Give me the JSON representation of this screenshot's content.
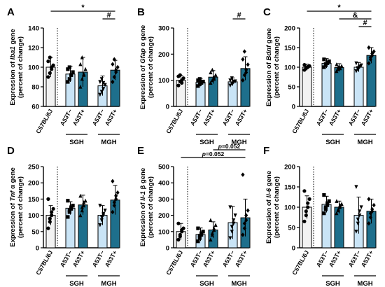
{
  "colors": {
    "ctrl": "#f2f2f2",
    "a53t_neg": "#c9e4f6",
    "a53t_pos": "#1e6f8c",
    "ink": "#000000"
  },
  "shared": {
    "categories": [
      "C57BL/6J",
      "A53T−",
      "A53T+",
      "A53T−",
      "A53T+"
    ],
    "groups": [
      "SGH",
      "MGH"
    ]
  },
  "chart_data": [
    {
      "panel": "A",
      "type": "bar",
      "ylabel_parts": [
        "Expression of ",
        "Iba1",
        " gene"
      ],
      "ylabel2": "(percent of change)",
      "ylim": [
        60,
        140
      ],
      "yticks": [
        60,
        80,
        100,
        120,
        140
      ],
      "values": [
        100,
        93,
        95,
        81,
        97
      ],
      "errors": [
        10,
        8,
        15,
        10,
        10
      ],
      "points": [
        [
          90,
          94,
          98,
          102,
          106,
          110,
          100
        ],
        [
          85,
          88,
          92,
          95,
          98,
          100,
          92
        ],
        [
          80,
          88,
          93,
          98,
          103,
          110,
          92
        ],
        [
          72,
          75,
          78,
          82,
          85,
          88,
          84
        ],
        [
          85,
          90,
          95,
          100,
          103,
          108,
          97
        ]
      ],
      "sig": [
        {
          "label": "*",
          "from": 0,
          "to": 4,
          "level": 0
        },
        {
          "label": "#",
          "from": 3,
          "to": 4,
          "level": 1
        }
      ]
    },
    {
      "panel": "B",
      "type": "bar",
      "ylabel_parts": [
        "Expression of ",
        "Gfap",
        " α gene"
      ],
      "ylabel2": "(percent of change)",
      "ylim": [
        0,
        300
      ],
      "yticks": [
        0,
        100,
        200,
        300
      ],
      "values": [
        100,
        92,
        112,
        94,
        145
      ],
      "errors": [
        18,
        15,
        25,
        15,
        45
      ],
      "points": [
        [
          80,
          95,
          100,
          108,
          115,
          120,
          90
        ],
        [
          78,
          85,
          90,
          95,
          100,
          105,
          92
        ],
        [
          90,
          100,
          110,
          120,
          130,
          140,
          105
        ],
        [
          80,
          88,
          92,
          96,
          100,
          108,
          95
        ],
        [
          100,
          120,
          140,
          160,
          180,
          210,
          130
        ]
      ],
      "sig": [
        {
          "label": "#",
          "from": 3,
          "to": 4,
          "level": 1
        }
      ]
    },
    {
      "panel": "C",
      "type": "bar",
      "ylabel_parts": [
        "Expression of ",
        "Bdnf",
        " gene"
      ],
      "ylabel2": "(percent of change)",
      "ylim": [
        0,
        200
      ],
      "yticks": [
        0,
        50,
        100,
        150,
        200
      ],
      "values": [
        100,
        110,
        99,
        100,
        130
      ],
      "errors": [
        8,
        12,
        10,
        12,
        20
      ],
      "points": [
        [
          93,
          97,
          100,
          103,
          106,
          99,
          101
        ],
        [
          100,
          105,
          110,
          115,
          120,
          108,
          112
        ],
        [
          90,
          95,
          99,
          103,
          107,
          100,
          97
        ],
        [
          90,
          95,
          100,
          105,
          110,
          98,
          102
        ],
        [
          110,
          120,
          130,
          140,
          150,
          125,
          135
        ]
      ],
      "sig": [
        {
          "label": "*",
          "from": 0,
          "to": 4,
          "level": 0
        },
        {
          "label": "&",
          "from": 2,
          "to": 4,
          "level": 1
        },
        {
          "label": "#",
          "from": 3,
          "to": 4,
          "level": 2
        }
      ]
    },
    {
      "panel": "D",
      "type": "bar",
      "ylabel_parts": [
        "Expression of ",
        "Tnf",
        " α gene"
      ],
      "ylabel2": "(percent of change)",
      "ylim": [
        0,
        250
      ],
      "yticks": [
        0,
        50,
        100,
        150,
        200,
        250
      ],
      "values": [
        100,
        122,
        132,
        100,
        147
      ],
      "errors": [
        30,
        20,
        30,
        30,
        45
      ],
      "points": [
        [
          60,
          80,
          100,
          120,
          150,
          90,
          110
        ],
        [
          95,
          110,
          120,
          130,
          145,
          115,
          125
        ],
        [
          100,
          115,
          130,
          145,
          160,
          125,
          140
        ],
        [
          70,
          85,
          100,
          115,
          130,
          95,
          105
        ],
        [
          110,
          130,
          150,
          170,
          205,
          140,
          160
        ]
      ],
      "sig": []
    },
    {
      "panel": "E",
      "type": "bar",
      "ylabel_parts": [
        "Expression of ",
        "Il-1",
        " β gene"
      ],
      "ylabel2": "(percent of change)",
      "ylim": [
        0,
        500
      ],
      "yticks": [
        0,
        100,
        200,
        300,
        400,
        500
      ],
      "values": [
        100,
        82,
        110,
        155,
        185
      ],
      "errors": [
        50,
        40,
        50,
        100,
        115
      ],
      "points": [
        [
          50,
          70,
          100,
          120,
          150,
          80,
          110
        ],
        [
          40,
          60,
          80,
          100,
          120,
          75,
          90
        ],
        [
          50,
          80,
          110,
          140,
          170,
          90,
          120
        ],
        [
          60,
          100,
          150,
          200,
          250,
          130,
          170
        ],
        [
          80,
          120,
          170,
          230,
          450,
          150,
          200
        ]
      ],
      "sig": [
        {
          "label": "p=0.052",
          "from": 0,
          "to": 4,
          "level": 1
        },
        {
          "label": "p=0.052",
          "from": 2,
          "to": 4,
          "level": 0
        }
      ]
    },
    {
      "panel": "F",
      "type": "bar",
      "ylabel_parts": [
        "Expression of ",
        "Il-6",
        " gene"
      ],
      "ylabel2": "(percent of change)",
      "ylim": [
        0,
        200
      ],
      "yticks": [
        0,
        50,
        100,
        150,
        200
      ],
      "values": [
        100,
        107,
        100,
        80,
        90
      ],
      "errors": [
        28,
        20,
        15,
        45,
        30
      ],
      "points": [
        [
          65,
          80,
          100,
          120,
          140,
          90,
          110
        ],
        [
          85,
          95,
          105,
          115,
          130,
          100,
          110
        ],
        [
          85,
          92,
          100,
          108,
          115,
          95,
          105
        ],
        [
          40,
          60,
          80,
          100,
          150,
          70,
          90
        ],
        [
          60,
          75,
          90,
          105,
          120,
          85,
          95
        ]
      ],
      "sig": []
    }
  ]
}
